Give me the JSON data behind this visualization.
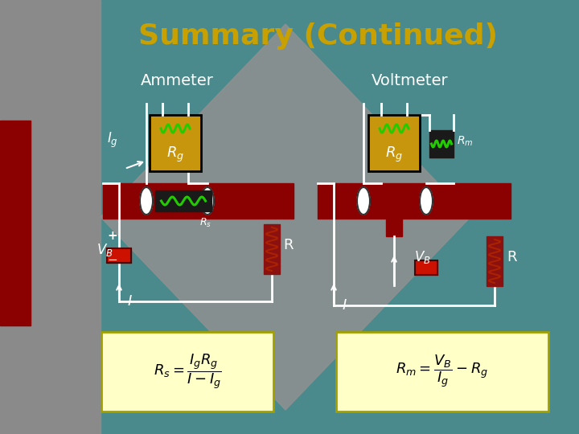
{
  "title": "Summary (Continued)",
  "title_color": "#C8A000",
  "title_fontsize": 26,
  "bg_teal": "#4A8A8C",
  "bg_gray": "#8A8A8A",
  "bg_dark_red_stripe": "#8B0000",
  "bar_dark_red": "#8B0000",
  "gold": "#C8960C",
  "dark_gold": "#B07800",
  "green_coil": "#22CC00",
  "white": "#FFFFFF",
  "black": "#000000",
  "formula_bg": "#FFFFC8",
  "formula_border": "#A0A000",
  "resistor_red": "#8B1010",
  "resistor_dark": "#6B0000",
  "ammeter_label": "Ammeter",
  "voltmeter_label": "Voltmeter",
  "formula1": "$R_s = \\dfrac{I_g R_g}{I - I_g}$",
  "formula2": "$R_m = \\dfrac{V_B}{I_g} - R_g$"
}
